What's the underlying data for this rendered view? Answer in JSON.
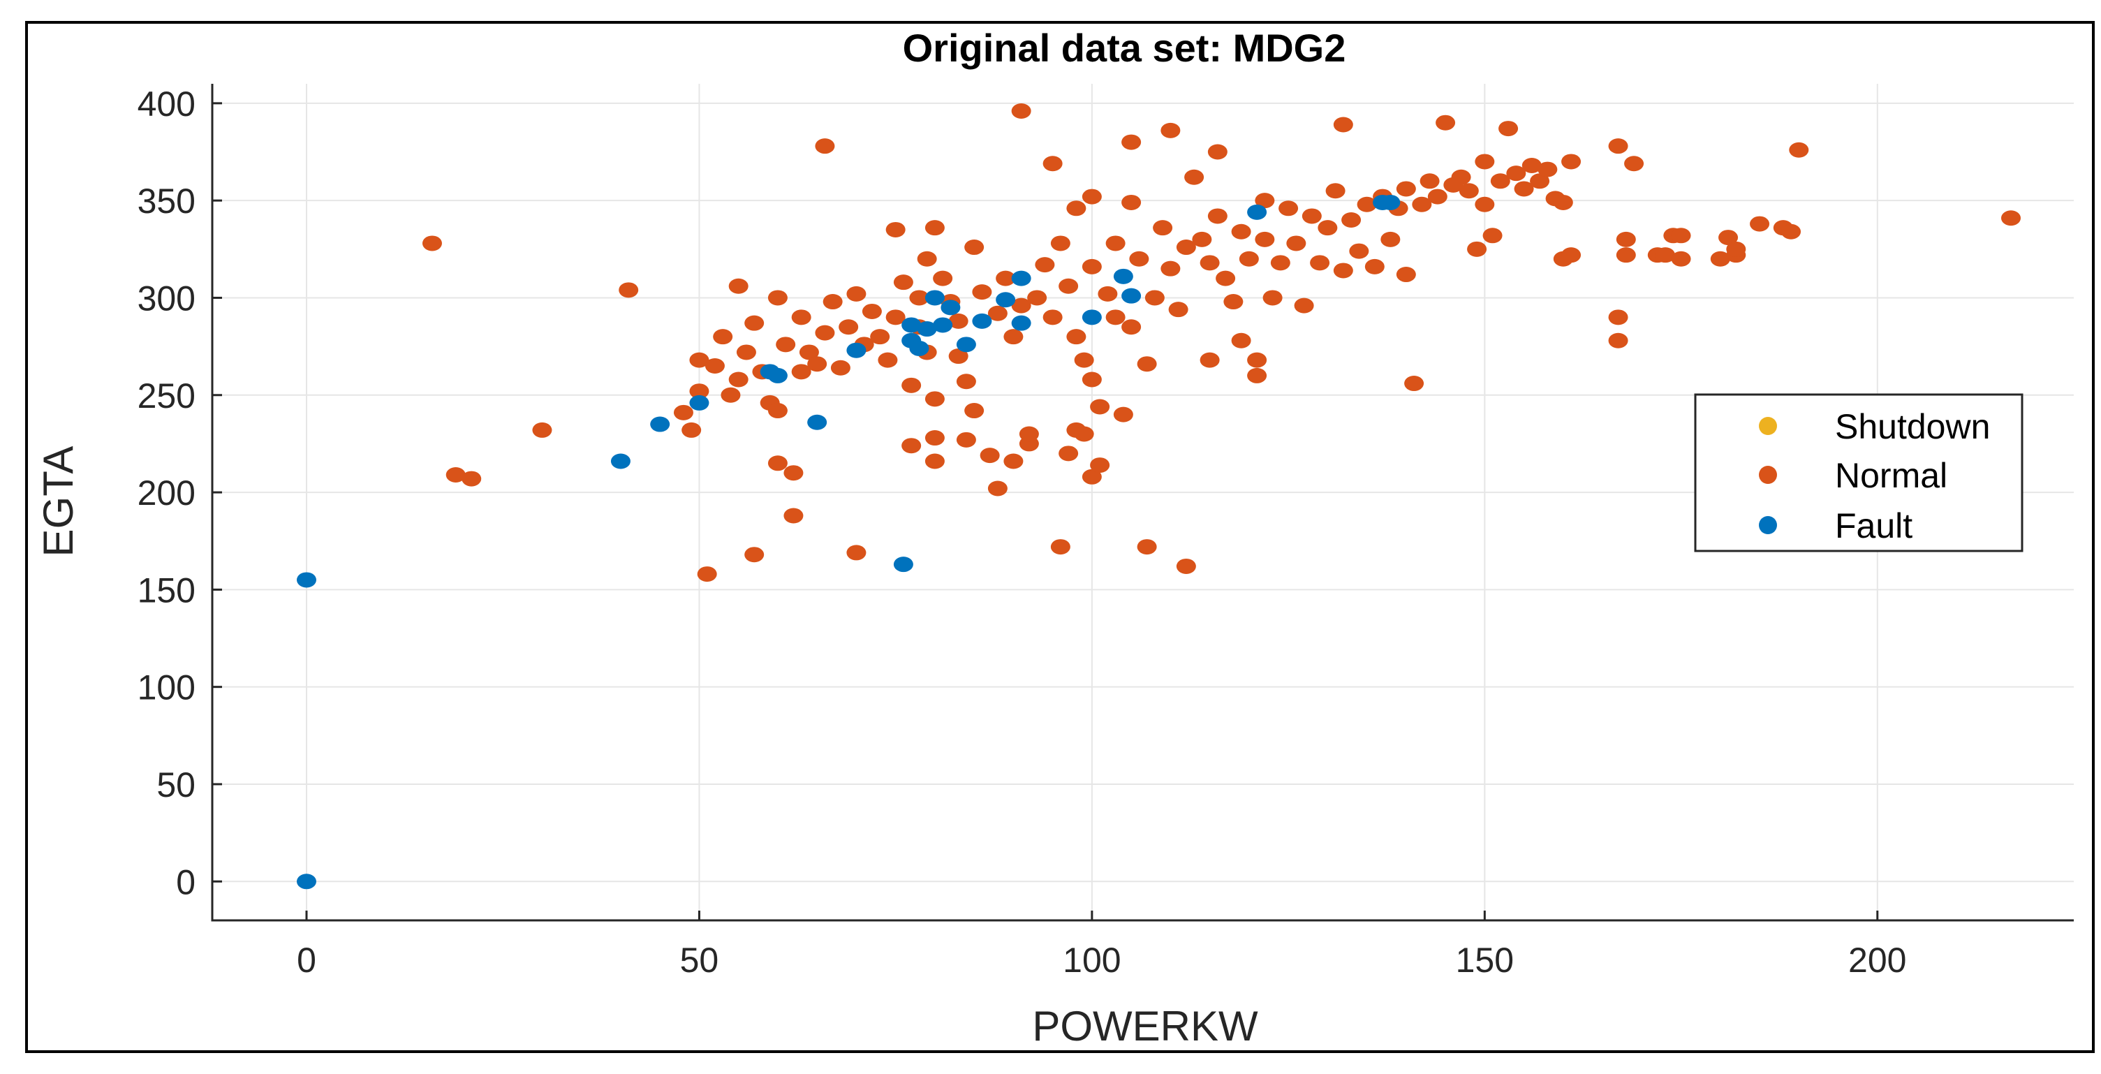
{
  "chart_data": {
    "type": "scatter",
    "title": "Original data set: MDG2",
    "xlabel": "POWERKW",
    "ylabel": "EGTA",
    "xlim": [
      -12,
      225
    ],
    "ylim": [
      -20,
      410
    ],
    "grid": true,
    "legend_position": "right",
    "xticks": [
      0,
      50,
      100,
      150,
      200
    ],
    "yticks": [
      0,
      50,
      100,
      150,
      200,
      250,
      300,
      350,
      400
    ],
    "colors": {
      "Shutdown": "#EDB120",
      "Normal": "#D95319",
      "Fault": "#0072BD"
    },
    "series": [
      {
        "name": "Shutdown",
        "points": []
      },
      {
        "name": "Normal",
        "points": [
          [
            16,
            328
          ],
          [
            19,
            209
          ],
          [
            21,
            207
          ],
          [
            30,
            232
          ],
          [
            41,
            304
          ],
          [
            48,
            241
          ],
          [
            49,
            232
          ],
          [
            50,
            268
          ],
          [
            50,
            252
          ],
          [
            51,
            158
          ],
          [
            52,
            265
          ],
          [
            53,
            280
          ],
          [
            54,
            250
          ],
          [
            55,
            306
          ],
          [
            55,
            258
          ],
          [
            56,
            272
          ],
          [
            57,
            168
          ],
          [
            57,
            287
          ],
          [
            58,
            262
          ],
          [
            59,
            246
          ],
          [
            60,
            300
          ],
          [
            60,
            215
          ],
          [
            60,
            242
          ],
          [
            61,
            276
          ],
          [
            62,
            188
          ],
          [
            62,
            210
          ],
          [
            63,
            262
          ],
          [
            63,
            290
          ],
          [
            64,
            272
          ],
          [
            65,
            266
          ],
          [
            66,
            378
          ],
          [
            66,
            282
          ],
          [
            67,
            298
          ],
          [
            68,
            264
          ],
          [
            69,
            285
          ],
          [
            70,
            169
          ],
          [
            70,
            302
          ],
          [
            71,
            276
          ],
          [
            72,
            293
          ],
          [
            73,
            280
          ],
          [
            74,
            268
          ],
          [
            75,
            335
          ],
          [
            75,
            290
          ],
          [
            76,
            308
          ],
          [
            77,
            255
          ],
          [
            77,
            224
          ],
          [
            78,
            300
          ],
          [
            78,
            285
          ],
          [
            79,
            272
          ],
          [
            79,
            320
          ],
          [
            80,
            336
          ],
          [
            80,
            248
          ],
          [
            80,
            228
          ],
          [
            80,
            216
          ],
          [
            81,
            310
          ],
          [
            82,
            298
          ],
          [
            83,
            288
          ],
          [
            83,
            270
          ],
          [
            84,
            227
          ],
          [
            84,
            257
          ],
          [
            85,
            326
          ],
          [
            85,
            242
          ],
          [
            86,
            303
          ],
          [
            87,
            219
          ],
          [
            88,
            292
          ],
          [
            88,
            202
          ],
          [
            89,
            310
          ],
          [
            90,
            280
          ],
          [
            90,
            216
          ],
          [
            91,
            396
          ],
          [
            91,
            296
          ],
          [
            92,
            225
          ],
          [
            92,
            230
          ],
          [
            93,
            300
          ],
          [
            94,
            317
          ],
          [
            95,
            369
          ],
          [
            95,
            290
          ],
          [
            96,
            172
          ],
          [
            96,
            328
          ],
          [
            97,
            306
          ],
          [
            97,
            220
          ],
          [
            98,
            346
          ],
          [
            98,
            280
          ],
          [
            98,
            232
          ],
          [
            99,
            230
          ],
          [
            99,
            268
          ],
          [
            100,
            352
          ],
          [
            100,
            316
          ],
          [
            100,
            208
          ],
          [
            100,
            258
          ],
          [
            101,
            244
          ],
          [
            101,
            214
          ],
          [
            102,
            302
          ],
          [
            103,
            328
          ],
          [
            103,
            290
          ],
          [
            104,
            240
          ],
          [
            105,
            380
          ],
          [
            105,
            349
          ],
          [
            105,
            285
          ],
          [
            106,
            320
          ],
          [
            107,
            172
          ],
          [
            107,
            266
          ],
          [
            108,
            300
          ],
          [
            109,
            336
          ],
          [
            110,
            386
          ],
          [
            110,
            315
          ],
          [
            111,
            294
          ],
          [
            112,
            162
          ],
          [
            112,
            326
          ],
          [
            113,
            362
          ],
          [
            114,
            330
          ],
          [
            115,
            318
          ],
          [
            115,
            268
          ],
          [
            116,
            375
          ],
          [
            116,
            342
          ],
          [
            117,
            310
          ],
          [
            118,
            298
          ],
          [
            119,
            278
          ],
          [
            119,
            334
          ],
          [
            120,
            320
          ],
          [
            121,
            260
          ],
          [
            121,
            268
          ],
          [
            122,
            350
          ],
          [
            122,
            330
          ],
          [
            123,
            300
          ],
          [
            124,
            318
          ],
          [
            125,
            346
          ],
          [
            126,
            328
          ],
          [
            127,
            296
          ],
          [
            128,
            342
          ],
          [
            129,
            318
          ],
          [
            130,
            336
          ],
          [
            131,
            355
          ],
          [
            132,
            389
          ],
          [
            132,
            314
          ],
          [
            133,
            340
          ],
          [
            134,
            324
          ],
          [
            135,
            348
          ],
          [
            136,
            316
          ],
          [
            137,
            352
          ],
          [
            138,
            330
          ],
          [
            139,
            346
          ],
          [
            140,
            356
          ],
          [
            140,
            312
          ],
          [
            141,
            256
          ],
          [
            142,
            348
          ],
          [
            143,
            360
          ],
          [
            144,
            352
          ],
          [
            145,
            390
          ],
          [
            146,
            358
          ],
          [
            147,
            362
          ],
          [
            148,
            355
          ],
          [
            149,
            325
          ],
          [
            150,
            370
          ],
          [
            150,
            348
          ],
          [
            151,
            332
          ],
          [
            152,
            360
          ],
          [
            153,
            387
          ],
          [
            154,
            364
          ],
          [
            155,
            356
          ],
          [
            156,
            368
          ],
          [
            157,
            360
          ],
          [
            158,
            366
          ],
          [
            159,
            351
          ],
          [
            160,
            349
          ],
          [
            160,
            320
          ],
          [
            161,
            370
          ],
          [
            161,
            322
          ],
          [
            167,
            378
          ],
          [
            167,
            290
          ],
          [
            167,
            278
          ],
          [
            168,
            330
          ],
          [
            168,
            322
          ],
          [
            169,
            369
          ],
          [
            172,
            322
          ],
          [
            173,
            322
          ],
          [
            174,
            332
          ],
          [
            175,
            332
          ],
          [
            175,
            320
          ],
          [
            180,
            320
          ],
          [
            181,
            331
          ],
          [
            182,
            322
          ],
          [
            182,
            325
          ],
          [
            185,
            338
          ],
          [
            188,
            336
          ],
          [
            189,
            334
          ],
          [
            190,
            376
          ],
          [
            217,
            341
          ]
        ]
      },
      {
        "name": "Fault",
        "points": [
          [
            0,
            155
          ],
          [
            0,
            0
          ],
          [
            40,
            216
          ],
          [
            45,
            235
          ],
          [
            50,
            246
          ],
          [
            59,
            262
          ],
          [
            60,
            260
          ],
          [
            65,
            236
          ],
          [
            70,
            273
          ],
          [
            76,
            163
          ],
          [
            77,
            278
          ],
          [
            77,
            286
          ],
          [
            78,
            274
          ],
          [
            79,
            284
          ],
          [
            80,
            300
          ],
          [
            81,
            286
          ],
          [
            82,
            295
          ],
          [
            84,
            276
          ],
          [
            86,
            288
          ],
          [
            89,
            299
          ],
          [
            91,
            310
          ],
          [
            91,
            287
          ],
          [
            100,
            290
          ],
          [
            104,
            311
          ],
          [
            105,
            301
          ],
          [
            121,
            344
          ],
          [
            137,
            349
          ],
          [
            138,
            349
          ]
        ]
      }
    ]
  }
}
